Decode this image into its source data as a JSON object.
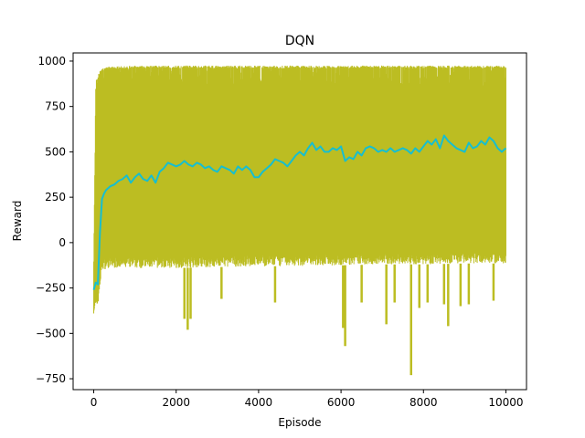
{
  "chart_data": {
    "type": "line",
    "title": "DQN",
    "xlabel": "Episode",
    "ylabel": "Reward",
    "xlim": [
      -500,
      10500
    ],
    "ylim": [
      -810,
      1045
    ],
    "xticks": [
      0,
      2000,
      4000,
      6000,
      8000,
      10000
    ],
    "yticks": [
      -750,
      -500,
      -250,
      0,
      250,
      500,
      750,
      1000
    ],
    "grid": false,
    "legend": "none",
    "series": [
      {
        "role": "raw",
        "color": "#bcbd22",
        "n_episodes": 10000,
        "envelope": {
          "x": [
            0,
            50,
            100,
            150,
            200,
            400,
            1000,
            2000,
            3000,
            4000,
            5000,
            6000,
            7000,
            8000,
            9000,
            10000
          ],
          "low": [
            -390,
            -370,
            -350,
            -250,
            -150,
            -140,
            -140,
            -140,
            -135,
            -130,
            -130,
            -125,
            -120,
            -120,
            -115,
            -115
          ],
          "high": [
            -100,
            900,
            920,
            950,
            960,
            970,
            975,
            975,
            975,
            975,
            975,
            975,
            975,
            975,
            975,
            975
          ]
        },
        "outliers": [
          {
            "x": 2200,
            "y": -420
          },
          {
            "x": 2280,
            "y": -480
          },
          {
            "x": 2350,
            "y": -420
          },
          {
            "x": 3100,
            "y": -310
          },
          {
            "x": 4400,
            "y": -330
          },
          {
            "x": 6050,
            "y": -470
          },
          {
            "x": 6100,
            "y": -570
          },
          {
            "x": 6500,
            "y": -330
          },
          {
            "x": 7100,
            "y": -450
          },
          {
            "x": 7300,
            "y": -330
          },
          {
            "x": 7700,
            "y": -730
          },
          {
            "x": 7900,
            "y": -360
          },
          {
            "x": 8100,
            "y": -330
          },
          {
            "x": 8500,
            "y": -340
          },
          {
            "x": 8600,
            "y": -460
          },
          {
            "x": 8900,
            "y": -350
          },
          {
            "x": 9100,
            "y": -340
          },
          {
            "x": 9700,
            "y": -320
          }
        ]
      },
      {
        "role": "moving_average",
        "color": "#17becf",
        "x": [
          0,
          50,
          100,
          150,
          200,
          250,
          300,
          400,
          500,
          600,
          700,
          800,
          900,
          1000,
          1100,
          1200,
          1300,
          1400,
          1500,
          1600,
          1700,
          1800,
          1900,
          2000,
          2100,
          2200,
          2300,
          2400,
          2500,
          2600,
          2700,
          2800,
          2900,
          3000,
          3100,
          3200,
          3300,
          3400,
          3500,
          3600,
          3700,
          3800,
          3900,
          4000,
          4100,
          4200,
          4300,
          4400,
          4500,
          4600,
          4700,
          4800,
          4900,
          5000,
          5100,
          5200,
          5300,
          5400,
          5500,
          5600,
          5700,
          5800,
          5900,
          6000,
          6100,
          6200,
          6300,
          6400,
          6500,
          6600,
          6700,
          6800,
          6900,
          7000,
          7100,
          7200,
          7300,
          7400,
          7500,
          7600,
          7700,
          7800,
          7900,
          8000,
          8100,
          8200,
          8300,
          8400,
          8500,
          8600,
          8700,
          8800,
          8900,
          9000,
          9100,
          9200,
          9300,
          9400,
          9500,
          9600,
          9700,
          9800,
          9900,
          10000
        ],
        "y": [
          -260,
          -220,
          -230,
          50,
          240,
          270,
          290,
          310,
          320,
          340,
          350,
          370,
          330,
          360,
          380,
          350,
          340,
          370,
          330,
          390,
          410,
          440,
          430,
          420,
          430,
          450,
          430,
          420,
          440,
          430,
          410,
          420,
          400,
          390,
          420,
          410,
          400,
          380,
          420,
          400,
          420,
          400,
          360,
          360,
          390,
          410,
          430,
          460,
          450,
          440,
          420,
          450,
          480,
          500,
          480,
          520,
          550,
          510,
          530,
          500,
          500,
          520,
          510,
          530,
          450,
          470,
          460,
          500,
          480,
          520,
          530,
          520,
          500,
          510,
          500,
          520,
          500,
          510,
          520,
          510,
          490,
          520,
          500,
          530,
          560,
          540,
          570,
          520,
          590,
          560,
          540,
          520,
          510,
          500,
          550,
          520,
          530,
          560,
          540,
          580,
          560,
          520,
          500,
          520
        ]
      }
    ]
  }
}
